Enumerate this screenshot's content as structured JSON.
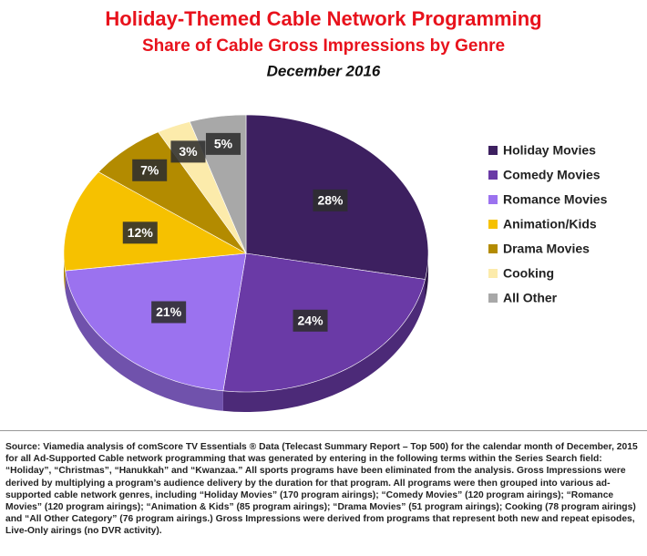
{
  "chart_data": {
    "type": "pie",
    "title": "Holiday-Themed Cable Network Programming",
    "subtitle": "Share of Cable Gross Impressions by Genre",
    "date": "December 2016",
    "categories": [
      "Holiday Movies",
      "Comedy Movies",
      "Romance Movies",
      "Animation/Kids",
      "Drama Movies",
      "Cooking",
      "All Other"
    ],
    "values": [
      28,
      24,
      21,
      12,
      7,
      3,
      5
    ],
    "value_labels": [
      "28%",
      "24%",
      "21%",
      "12%",
      "7%",
      "3%",
      "5%"
    ],
    "colors": [
      "#3d2060",
      "#6a3aa6",
      "#9b72ef",
      "#f6c100",
      "#b38b00",
      "#fcebab",
      "#a8a8a8"
    ],
    "legend": "right",
    "source": "Source: Viamedia analysis of comScore TV Essentials ® Data (Telecast Summary Report – Top 500) for the calendar month of December, 2015 for all Ad-Supported Cable network programming that was generated by entering in the following terms within the Series Search field: “Holiday”, “Christmas”, “Hanukkah” and “Kwanzaa.” All sports programs have been eliminated from the analysis. Gross Impressions were derived by multiplying a program’s audience delivery by the duration for that program. All programs were then grouped into various ad-supported cable network genres, including “Holiday Movies” (170 program airings); “Comedy Movies” (120 program airings); “Romance Movies” (120 program airings); “Animation & Kids” (85 program airings); “Drama Movies” (51 program airings); Cooking (78 program airings) and “All Other Category” (76 program airings.) Gross Impressions were derived from programs that represent both new and repeat episodes, Live-Only airings (no DVR activity)."
  }
}
